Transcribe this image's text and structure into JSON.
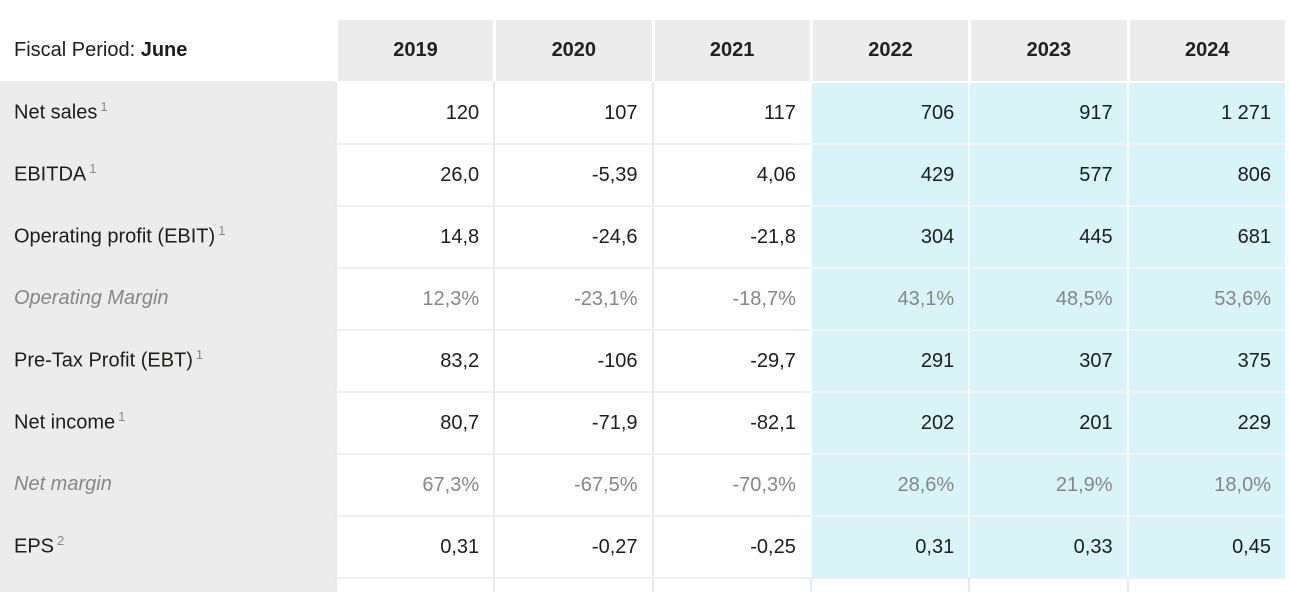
{
  "table": {
    "header": {
      "label_prefix": "Fiscal Period: ",
      "label_strong": "June",
      "years": [
        "2019",
        "2020",
        "2021",
        "2022",
        "2023",
        "2024"
      ],
      "estimate_start_index": 3
    },
    "rows": [
      {
        "label": "Net sales",
        "sup": "1",
        "style": "normal",
        "values": [
          "120",
          "107",
          "117",
          "706",
          "917",
          "1 271"
        ]
      },
      {
        "label": "EBITDA",
        "sup": "1",
        "style": "normal",
        "values": [
          "26,0",
          "-5,39",
          "4,06",
          "429",
          "577",
          "806"
        ]
      },
      {
        "label": "Operating profit (EBIT)",
        "sup": "1",
        "style": "normal",
        "values": [
          "14,8",
          "-24,6",
          "-21,8",
          "304",
          "445",
          "681"
        ]
      },
      {
        "label": "Operating Margin",
        "sup": "",
        "style": "italic",
        "values": [
          "12,3%",
          "-23,1%",
          "-18,7%",
          "43,1%",
          "48,5%",
          "53,6%"
        ]
      },
      {
        "label": "Pre-Tax Profit (EBT)",
        "sup": "1",
        "style": "normal",
        "values": [
          "83,2",
          "-106",
          "-29,7",
          "291",
          "307",
          "375"
        ]
      },
      {
        "label": "Net income",
        "sup": "1",
        "style": "normal",
        "values": [
          "80,7",
          "-71,9",
          "-82,1",
          "202",
          "201",
          "229"
        ]
      },
      {
        "label": "Net margin",
        "sup": "",
        "style": "italic",
        "values": [
          "67,3%",
          "-67,5%",
          "-70,3%",
          "28,6%",
          "21,9%",
          "18,0%"
        ]
      },
      {
        "label": "EPS",
        "sup": "2",
        "style": "normal",
        "values": [
          "0,31",
          "-0,27",
          "-0,25",
          "0,31",
          "0,33",
          "0,45"
        ]
      }
    ],
    "colors": {
      "label_bg": "#ececec",
      "header_bg": "#ececec",
      "estimate_bg": "#d9f4f8",
      "text": "#1d1d1b",
      "muted_text": "#868686",
      "grid_border": "#e9e9e9"
    }
  }
}
